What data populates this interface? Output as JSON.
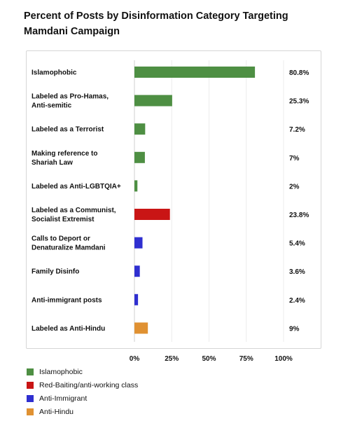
{
  "title": "Percent of Posts by Disinformation Category Targeting Mamdani Campaign",
  "colors": {
    "islamophobic": "#4e8f43",
    "red_baiting": "#c91515",
    "anti_immigrant": "#2f2fd0",
    "anti_hindu": "#e09132"
  },
  "chart_data": {
    "type": "bar",
    "orientation": "horizontal",
    "title": "Percent of Posts by Disinformation Category Targeting Mamdani Campaign",
    "categories": [
      [
        "Islamophobic"
      ],
      [
        "Labeled as Pro-Hamas,",
        "Anti-semitic"
      ],
      [
        "Labeled as a Terrorist"
      ],
      [
        "Making reference to",
        "Shariah Law"
      ],
      [
        "Labeled as Anti-LGBTQIA+"
      ],
      [
        "Labeled as a Communist,",
        "Socialist Extremist"
      ],
      [
        "Calls to Deport or",
        "Denaturalize Mamdani"
      ],
      [
        "Family Disinfo"
      ],
      [
        "Anti-immigrant posts"
      ],
      [
        "Labeled as Anti-Hindu"
      ]
    ],
    "values": [
      80.8,
      25.3,
      7.2,
      7,
      2,
      23.8,
      5.4,
      3.6,
      2.4,
      9
    ],
    "value_labels": [
      "80.8%",
      "25.3%",
      "7.2%",
      "7%",
      "2%",
      "23.8%",
      "5.4%",
      "3.6%",
      "2.4%",
      "9%"
    ],
    "bar_groups": [
      "islamophobic",
      "islamophobic",
      "islamophobic",
      "islamophobic",
      "islamophobic",
      "red_baiting",
      "anti_immigrant",
      "anti_immigrant",
      "anti_immigrant",
      "anti_hindu"
    ],
    "xlim": [
      0,
      100
    ],
    "x_ticks": [
      0,
      25,
      50,
      75,
      100
    ],
    "x_tick_labels": [
      "0%",
      "25%",
      "50%",
      "75%",
      "100%"
    ],
    "grid": true,
    "legend_position": "bottom-left",
    "legend": [
      {
        "name": "Islamophobic",
        "group": "islamophobic"
      },
      {
        "name": "Red-Baiting/anti-working class",
        "group": "red_baiting"
      },
      {
        "name": "Anti-Immigrant",
        "group": "anti_immigrant"
      },
      {
        "name": "Anti-Hindu",
        "group": "anti_hindu"
      }
    ]
  }
}
